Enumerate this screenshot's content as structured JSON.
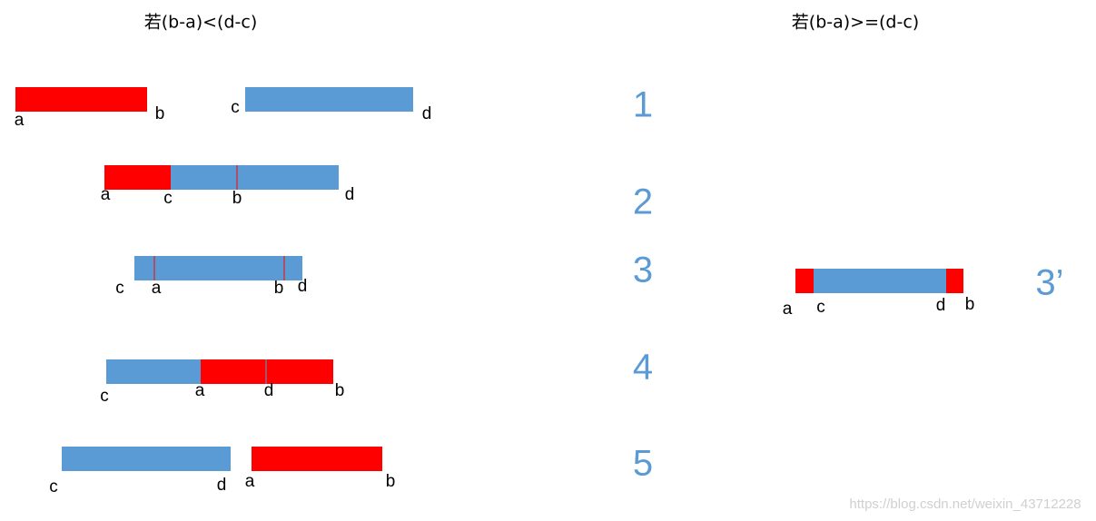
{
  "titles": {
    "left": "若(b-a)<(d-c)",
    "right": "若(b-a)>=(d-c)"
  },
  "cases": [
    "1",
    "2",
    "3",
    "4",
    "5"
  ],
  "case_right": "3’",
  "rows": [
    [
      "a",
      "b",
      "c",
      "d"
    ],
    [
      "a",
      "c",
      "b",
      "d"
    ],
    [
      "c",
      "a",
      "b",
      "d"
    ],
    [
      "c",
      "a",
      "d",
      "b"
    ],
    [
      "c",
      "d",
      "a",
      "b"
    ]
  ],
  "right_row": [
    "a",
    "c",
    "d",
    "b"
  ],
  "watermark": "https://blog.csdn.net/weixin_43712228"
}
